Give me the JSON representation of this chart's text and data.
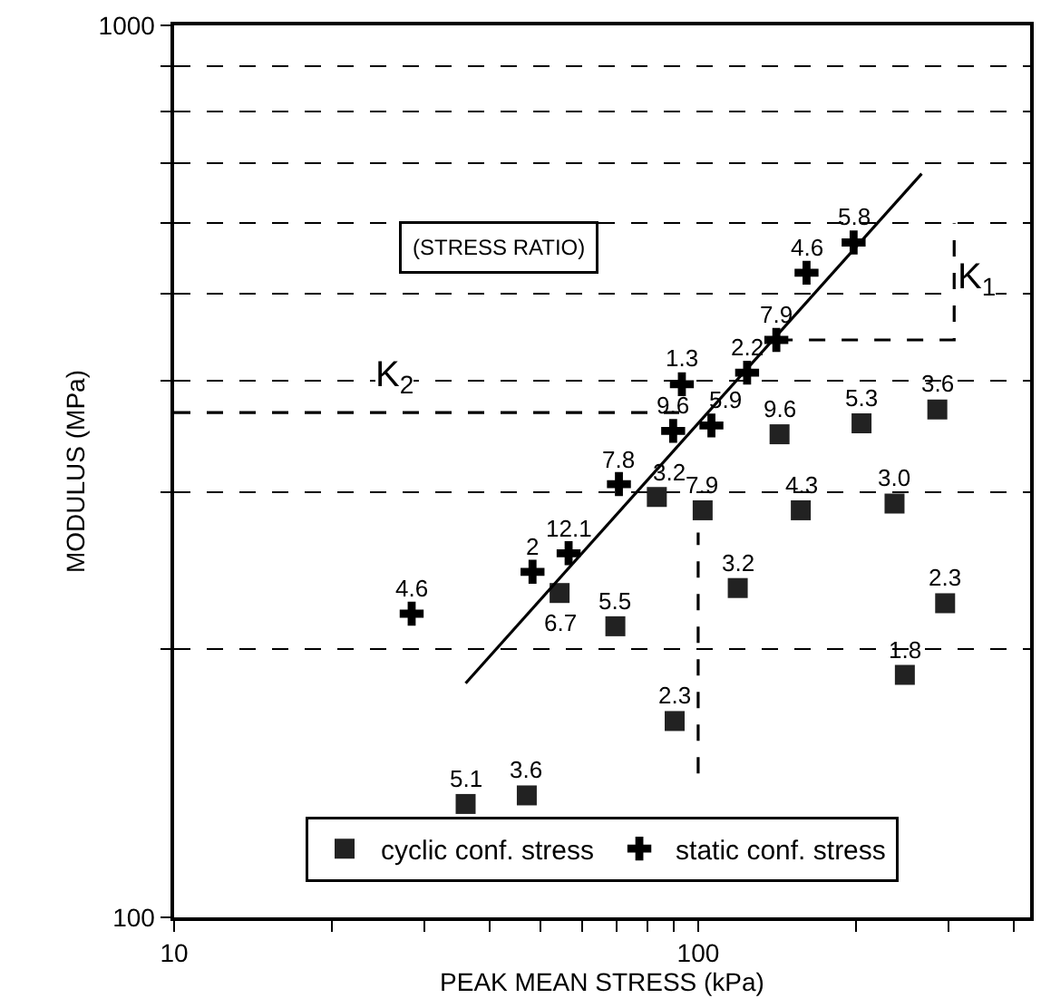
{
  "chart_data": {
    "type": "scatter",
    "xlabel": "PEAK MEAN STRESS (kPa)",
    "ylabel": "MODULUS (MPa)",
    "log": "xy",
    "xlim": [
      10,
      430
    ],
    "ylim": [
      100,
      1000
    ],
    "xticks": [
      10,
      {
        "value": 20,
        "label": null
      },
      {
        "value": 30,
        "label": null
      },
      {
        "value": 40,
        "label": null
      },
      {
        "value": 50,
        "label": null
      },
      {
        "value": 60,
        "label": null
      },
      {
        "value": 70,
        "label": null
      },
      {
        "value": 80,
        "label": null
      },
      {
        "value": 90,
        "label": null
      },
      100,
      {
        "value": 200,
        "label": null
      },
      {
        "value": 300,
        "label": null
      },
      {
        "value": 400,
        "label": null
      }
    ],
    "yticks": [
      100,
      {
        "value": 200,
        "label": null
      },
      {
        "value": 300,
        "label": null
      },
      {
        "value": 400,
        "label": null
      },
      {
        "value": 500,
        "label": null
      },
      {
        "value": 600,
        "label": null
      },
      {
        "value": 700,
        "label": null
      },
      {
        "value": 800,
        "label": null
      },
      {
        "value": 900,
        "label": null
      },
      1000
    ],
    "grid": "y",
    "legend": "bottom",
    "series": [
      {
        "name": "cyclic conf. stress",
        "marker": "square",
        "color": "#222222",
        "x": [
          36.0,
          47.1,
          90.2,
          248,
          69.5,
          54.4,
          119,
          296,
          83.4,
          102,
          157,
          237,
          143,
          205,
          286
        ],
        "values": [
          134,
          137,
          166,
          187,
          212,
          231,
          234,
          225,
          296,
          286,
          286,
          291,
          348,
          358,
          371
        ]
      },
      {
        "name": "static conf. stress",
        "marker": "cross",
        "color": "#000000",
        "x": [
          28.4,
          48.3,
          56.6,
          70.6,
          89.6,
          106,
          93.1,
          124,
          141,
          161,
          198
        ],
        "values": [
          219,
          244,
          256,
          306,
          351,
          356,
          396,
          408,
          444,
          528,
          571
        ]
      },
      {
        "type": "line",
        "line_style": "solid",
        "color": "#000000",
        "x": [
          36.0,
          267
        ],
        "values": [
          183,
          682
        ]
      },
      {
        "type": "line",
        "line_style": "dashed",
        "color": "#000000",
        "x": [
          10,
          92
        ],
        "values": [
          368,
          368
        ]
      },
      {
        "type": "line",
        "line_style": "dashed",
        "color": "#000000",
        "x": [
          141,
          308,
          308
        ],
        "values": [
          444,
          444,
          600
        ]
      },
      {
        "type": "line",
        "line_style": "dashed",
        "color": "#000000",
        "x": [
          100,
          100
        ],
        "values": [
          145,
          270
        ]
      }
    ],
    "annotations": [
      "(STRESS RATIO)",
      "K$_{1}$",
      "K$_{2}$",
      {
        "text": "5.1",
        "x": 36.0,
        "y": 134
      },
      {
        "text": "3.6",
        "x": 47.1,
        "y": 137
      },
      {
        "text": "2.3",
        "x": 90.2,
        "y": 166
      },
      {
        "text": "1.8",
        "x": 248,
        "y": 187
      },
      {
        "text": "5.5",
        "x": 69.5,
        "y": 212
      },
      {
        "text": "6.7",
        "x": 54.4,
        "y": 231
      },
      {
        "text": "3.2",
        "x": 119,
        "y": 234
      },
      {
        "text": "2.3",
        "x": 296,
        "y": 225
      },
      {
        "text": "3.2",
        "x": 83.4,
        "y": 296
      },
      {
        "text": "7.9",
        "x": 102,
        "y": 286
      },
      {
        "text": "4.3",
        "x": 157,
        "y": 286
      },
      {
        "text": "3.0",
        "x": 237,
        "y": 291
      },
      {
        "text": "9.6",
        "x": 143,
        "y": 348
      },
      {
        "text": "5.3",
        "x": 205,
        "y": 358
      },
      {
        "text": "3.6",
        "x": 286,
        "y": 371
      },
      {
        "text": "4.6",
        "x": 28.4,
        "y": 219
      },
      {
        "text": "2",
        "x": 48.3,
        "y": 244
      },
      {
        "text": "12.1",
        "x": 56.6,
        "y": 256
      },
      {
        "text": "7.8",
        "x": 70.6,
        "y": 306
      },
      {
        "text": "9.6",
        "x": 89.6,
        "y": 351
      },
      {
        "text": "5.9",
        "x": 106,
        "y": 356
      },
      {
        "text": "1.3",
        "x": 93.1,
        "y": 396
      },
      {
        "text": "2.2",
        "x": 124,
        "y": 408
      },
      {
        "text": "7.9",
        "x": 141,
        "y": 444
      },
      {
        "text": "4.6",
        "x": 161,
        "y": 528
      },
      {
        "text": "5.8",
        "x": 198,
        "y": 571
      }
    ]
  }
}
